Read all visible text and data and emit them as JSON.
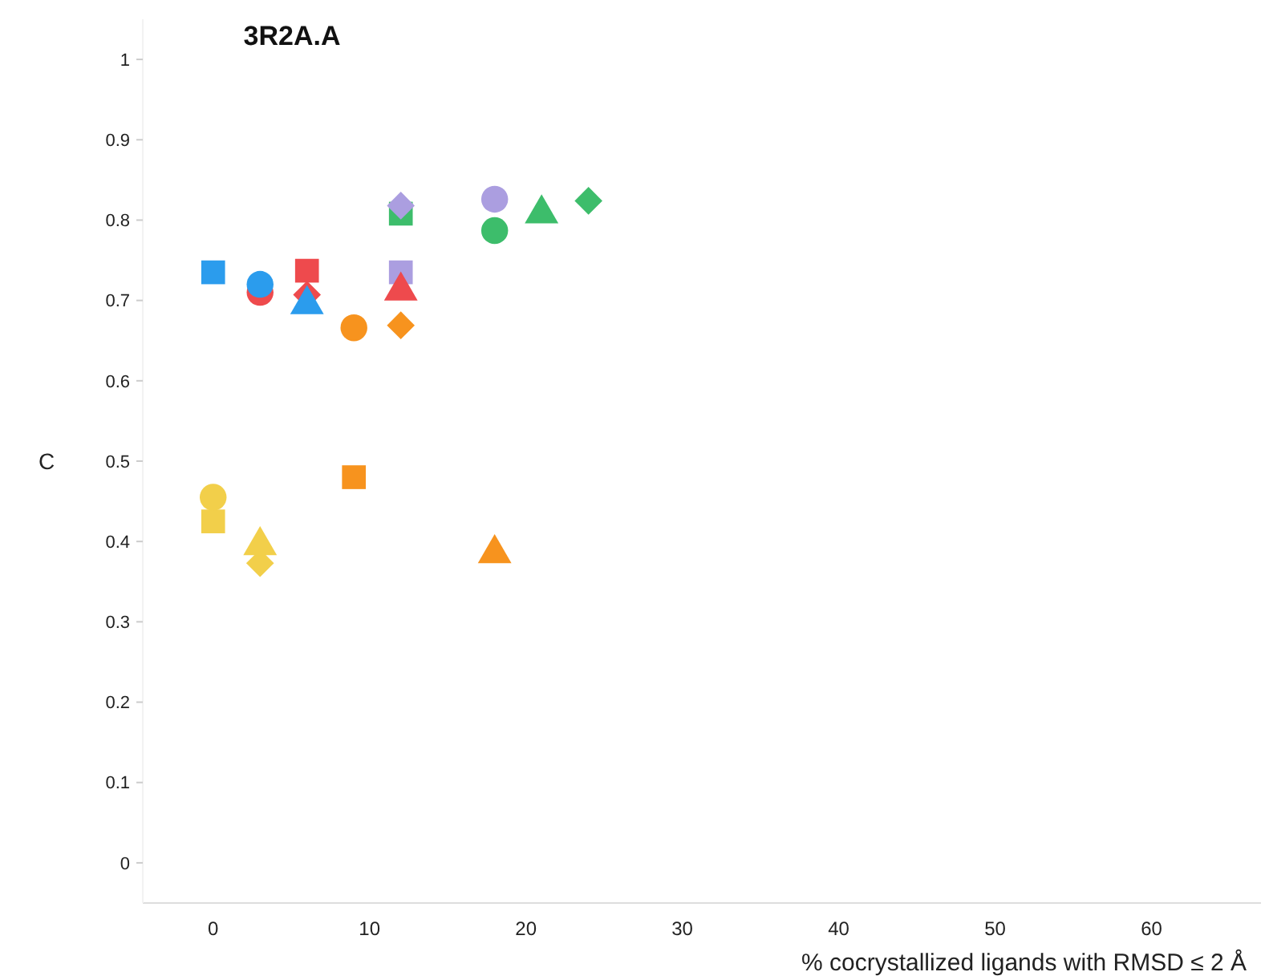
{
  "chart_data": {
    "type": "scatter",
    "title": "3R2A.A",
    "xlabel": "% cocrystallized ligands with RMSD ≤ 2 Å",
    "ylabel": "C",
    "xlim": [
      -4.5,
      67
    ],
    "xticks": [
      0,
      10,
      20,
      30,
      40,
      50,
      60
    ],
    "ylim": [
      -0.05,
      1.05
    ],
    "yticks": [
      0,
      0.1,
      0.2,
      0.3,
      0.4,
      0.5,
      0.6,
      0.7,
      0.8,
      0.9,
      1
    ],
    "grid": false,
    "series": [
      {
        "marker": "square",
        "x": [
          0,
          6,
          12,
          12,
          9,
          0
        ],
        "values": [
          0.735,
          0.737,
          0.735,
          0.808,
          0.48,
          0.425
        ],
        "colors": [
          "#2b9ced",
          "#ee4a4d",
          "#ab9ee0",
          "#3dbd6b",
          "#f7931e",
          "#f2cf4a"
        ]
      },
      {
        "marker": "circle",
        "x": [
          3,
          3,
          18,
          18,
          9,
          0
        ],
        "values": [
          0.71,
          0.72,
          0.826,
          0.787,
          0.666,
          0.455
        ],
        "colors": [
          "#ee4a4d",
          "#2b9ced",
          "#ab9ee0",
          "#3dbd6b",
          "#f7931e",
          "#f2cf4a"
        ]
      },
      {
        "marker": "diamond",
        "x": [
          6,
          12,
          24,
          12,
          3
        ],
        "values": [
          0.707,
          0.818,
          0.824,
          0.669,
          0.373
        ],
        "colors": [
          "#ee4a4d",
          "#ab9ee0",
          "#3dbd6b",
          "#f7931e",
          "#f2cf4a"
        ]
      },
      {
        "marker": "triangle",
        "x": [
          6,
          12,
          21,
          18,
          3
        ],
        "values": [
          0.695,
          0.712,
          0.808,
          0.385,
          0.395
        ],
        "colors": [
          "#2b9ced",
          "#ee4a4d",
          "#3dbd6b",
          "#f7931e",
          "#f2cf4a"
        ]
      }
    ]
  }
}
